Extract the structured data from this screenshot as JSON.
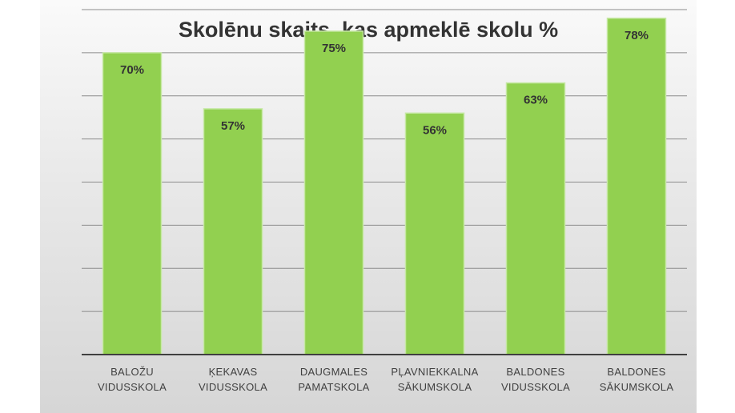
{
  "chart_data": {
    "type": "bar",
    "title": "Skolēnu skaits, kas apmeklē skolu %",
    "categories": [
      [
        "BALOŽU",
        "VIDUSSKOLA"
      ],
      [
        "ĶEKAVAS",
        "VIDUSSKOLA"
      ],
      [
        "DAUGMALES",
        "PAMATSKOLA"
      ],
      [
        "PĻAVNIEKKALNA",
        "SĀKUMSKOLA"
      ],
      [
        "BALDONES",
        "VIDUSSKOLA"
      ],
      [
        "BALDONES",
        "SĀKUMSKOLA"
      ]
    ],
    "values": [
      70,
      57,
      75,
      56,
      63,
      78
    ],
    "data_labels": [
      "70%",
      "57%",
      "75%",
      "56%",
      "63%",
      "78%"
    ],
    "ylim": [
      0,
      80
    ],
    "grid": true,
    "legend": "none",
    "colors": {
      "bar_fill": "#92d050",
      "bar_stroke": "#c6e8a4",
      "gridline": "#8c8c8c",
      "axis": "#404040"
    }
  }
}
